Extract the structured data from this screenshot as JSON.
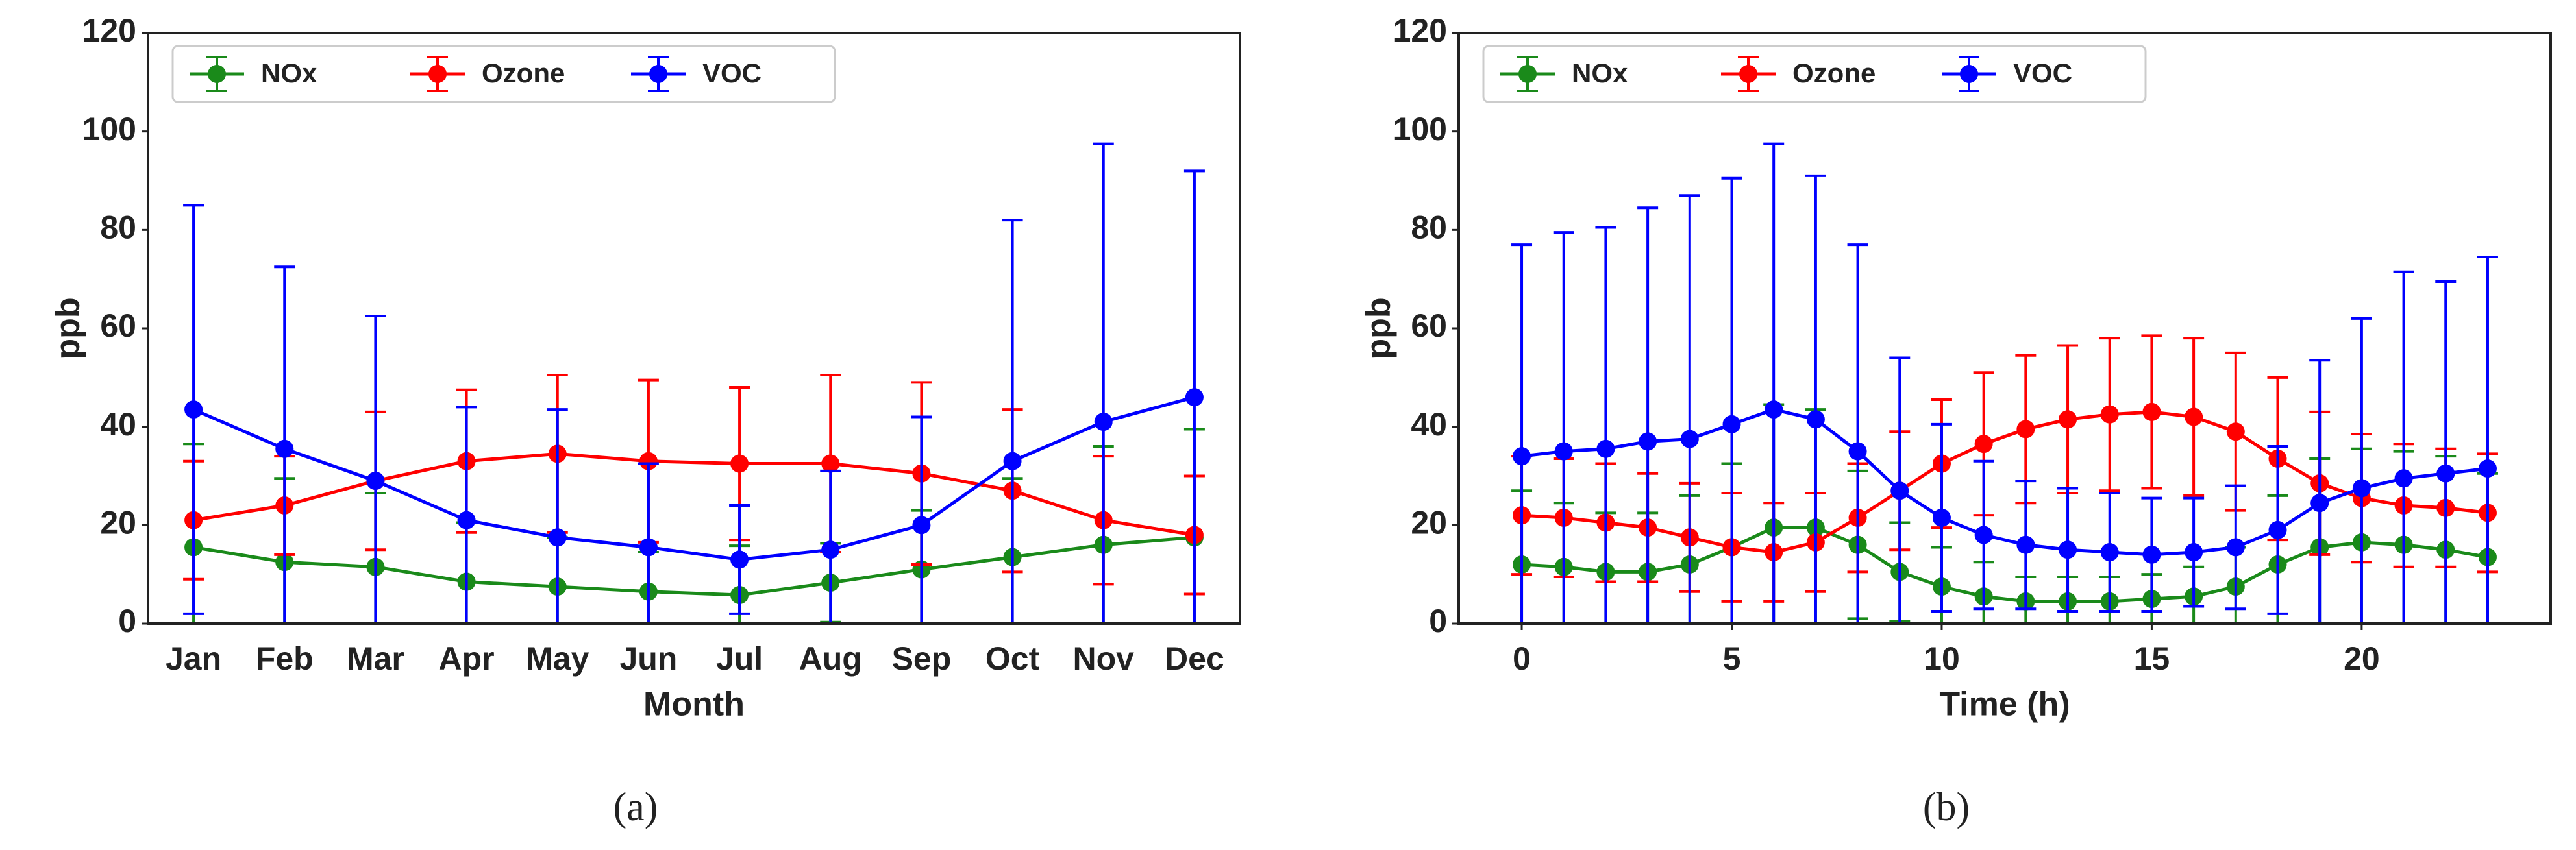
{
  "chart_data": [
    {
      "type": "line",
      "caption": "(a)",
      "xlabel": "Month",
      "ylabel": "ppb",
      "categories": [
        "Jan",
        "Feb",
        "Mar",
        "Apr",
        "May",
        "Jun",
        "Jul",
        "Aug",
        "Sep",
        "Oct",
        "Nov",
        "Dec"
      ],
      "ylim": [
        0,
        120
      ],
      "yticks": [
        0,
        20,
        40,
        60,
        80,
        100,
        120
      ],
      "legend": "upper left",
      "series": [
        {
          "name": "NOx",
          "color": "#1a8a1a",
          "values": [
            15.5,
            12.5,
            11.5,
            8.5,
            7.5,
            6.5,
            5.8,
            8.3,
            11,
            13.5,
            16,
            17.5
          ],
          "errors": [
            21,
            17,
            15,
            12,
            10,
            8,
            10,
            8,
            12,
            16,
            20,
            22
          ]
        },
        {
          "name": "Ozone",
          "color": "#ff0000",
          "values": [
            21,
            24,
            29,
            33,
            34.5,
            33,
            32.5,
            32.5,
            30.5,
            27,
            21,
            18
          ],
          "errors": [
            12,
            10,
            14,
            14.5,
            16,
            16.5,
            15.5,
            18,
            18.5,
            16.5,
            13,
            12
          ]
        },
        {
          "name": "VOC",
          "color": "#0000ff",
          "values": [
            43.5,
            35.5,
            29,
            21,
            17.5,
            15.5,
            13,
            15,
            20,
            33,
            41,
            46
          ],
          "errors": [
            41.5,
            37,
            33.5,
            23,
            26,
            17,
            11,
            16,
            22,
            49,
            56.5,
            46
          ]
        }
      ]
    },
    {
      "type": "line",
      "caption": "(b)",
      "xlabel": "Time (h)",
      "ylabel": "ppb",
      "x": [
        0,
        1,
        2,
        3,
        4,
        5,
        6,
        7,
        8,
        9,
        10,
        11,
        12,
        13,
        14,
        15,
        16,
        17,
        18,
        19,
        20,
        21,
        22,
        23
      ],
      "xlim": [
        -1.5,
        24.5
      ],
      "xticks": [
        0,
        5,
        10,
        15,
        20
      ],
      "ylim": [
        0,
        120
      ],
      "yticks": [
        0,
        20,
        40,
        60,
        80,
        100,
        120
      ],
      "legend": "upper left",
      "series": [
        {
          "name": "NOx",
          "color": "#1a8a1a",
          "values": [
            12,
            11.5,
            10.5,
            10.5,
            12,
            15.5,
            19.5,
            19.5,
            16,
            10.5,
            7.5,
            5.5,
            4.5,
            4.5,
            4.5,
            5,
            5.5,
            7.5,
            12,
            15.5,
            16.5,
            16,
            15,
            13.5
          ],
          "errors": [
            15,
            13,
            12,
            12,
            14,
            17,
            25,
            24,
            15,
            10,
            8,
            7,
            5,
            5,
            5,
            5,
            6,
            8,
            14,
            18,
            19,
            19,
            19,
            17
          ]
        },
        {
          "name": "Ozone",
          "color": "#ff0000",
          "values": [
            22,
            21.5,
            20.5,
            19.5,
            17.5,
            15.5,
            14.5,
            16.5,
            21.5,
            27,
            32.5,
            36.5,
            39.5,
            41.5,
            42.5,
            43,
            42,
            39,
            33.5,
            28.5,
            25.5,
            24,
            23.5,
            22.5
          ],
          "errors": [
            12,
            12,
            12,
            11,
            11,
            11,
            10,
            10,
            11,
            12,
            13,
            14.5,
            15,
            15,
            15.5,
            15.5,
            16,
            16,
            16.5,
            14.5,
            13,
            12.5,
            12,
            12
          ]
        },
        {
          "name": "VOC",
          "color": "#0000ff",
          "values": [
            34,
            35,
            35.5,
            37,
            37.5,
            40.5,
            43.5,
            41.5,
            35,
            27,
            21.5,
            18,
            16,
            15,
            14.5,
            14,
            14.5,
            15.5,
            19,
            24.5,
            27.5,
            29.5,
            30.5,
            31.5
          ],
          "errors": [
            43,
            44.5,
            45,
            47.5,
            49.5,
            50,
            54,
            49.5,
            42,
            27,
            19,
            15,
            13,
            12.5,
            12,
            11.5,
            11,
            12.5,
            17,
            29,
            34.5,
            42,
            39,
            43
          ]
        }
      ]
    }
  ]
}
